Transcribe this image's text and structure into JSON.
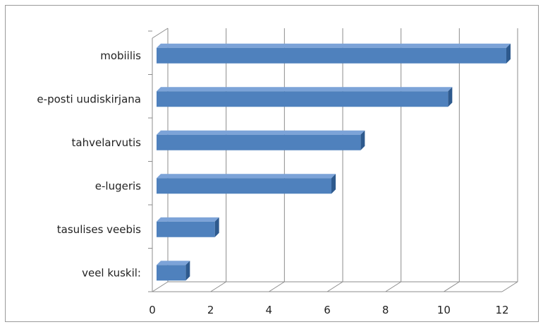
{
  "chart_data": {
    "type": "bar",
    "orientation": "horizontal",
    "style": "3d",
    "title": "",
    "xlabel": "",
    "ylabel": "",
    "categories": [
      "mobiilis",
      "e-posti uudiskirjana",
      "tahvelarvutis",
      "e-lugeris",
      "tasulises veebis",
      "veel kuskil:"
    ],
    "values": [
      12,
      10,
      7,
      6,
      2,
      1
    ],
    "xlim": [
      0,
      12
    ],
    "xticks": [
      "0",
      "2",
      "4",
      "6",
      "8",
      "10",
      "12"
    ],
    "grid": true,
    "legend": "none",
    "colors": {
      "bar_front": "#4F81BD",
      "bar_top": "#7CA3D8",
      "bar_side": "#2E5A8E",
      "grid": "#8c8c8c"
    }
  }
}
